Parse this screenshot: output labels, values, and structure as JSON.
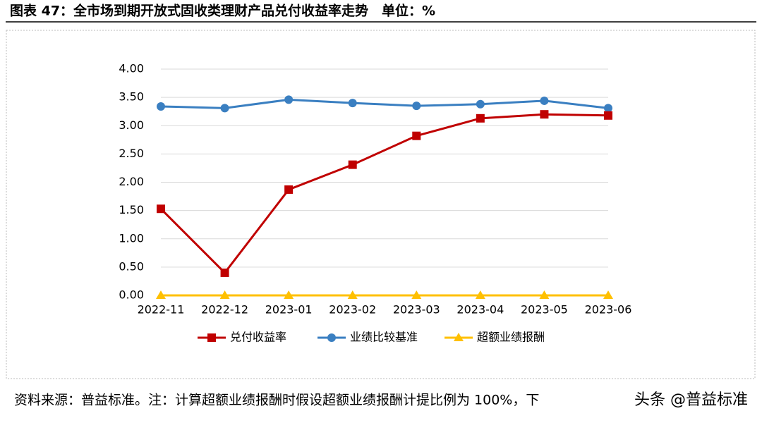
{
  "chart_data": {
    "type": "line",
    "title": "图表 47：全市场到期开放式固收类理财产品兑付收益率走势　单位：%",
    "categories": [
      "2022-11",
      "2022-12",
      "2023-01",
      "2023-02",
      "2023-03",
      "2023-04",
      "2023-05",
      "2023-06"
    ],
    "series": [
      {
        "name": "兑付收益率",
        "color": "#c00000",
        "marker": "square",
        "values": [
          1.53,
          0.4,
          1.87,
          2.31,
          2.82,
          3.13,
          3.2,
          3.18
        ]
      },
      {
        "name": "业绩比较基准",
        "color": "#3a7fc1",
        "marker": "circle",
        "values": [
          3.34,
          3.31,
          3.46,
          3.4,
          3.35,
          3.38,
          3.44,
          3.31
        ]
      },
      {
        "name": "超额业绩报酬",
        "color": "#ffc000",
        "marker": "triangle",
        "values": [
          0,
          0,
          0,
          0,
          0,
          0,
          0,
          0
        ]
      }
    ],
    "ylim": [
      0,
      4
    ],
    "yticks": [
      {
        "value": 0,
        "label": "0.00"
      },
      {
        "value": 0.5,
        "label": "0.50"
      },
      {
        "value": 1,
        "label": "1.00"
      },
      {
        "value": 1.5,
        "label": "1.50"
      },
      {
        "value": 2,
        "label": "2.00"
      },
      {
        "value": 2.5,
        "label": "2.50"
      },
      {
        "value": 3,
        "label": "3.00"
      },
      {
        "value": 3.5,
        "label": "3.50"
      },
      {
        "value": 4,
        "label": "4.00"
      }
    ],
    "grid": true,
    "legend": "bottom",
    "source": "资料来源：普益标准。注：计算超额业绩报酬时假设超额业绩报酬计提比例为 100%，下",
    "watermark": "头条 @普益标准"
  }
}
